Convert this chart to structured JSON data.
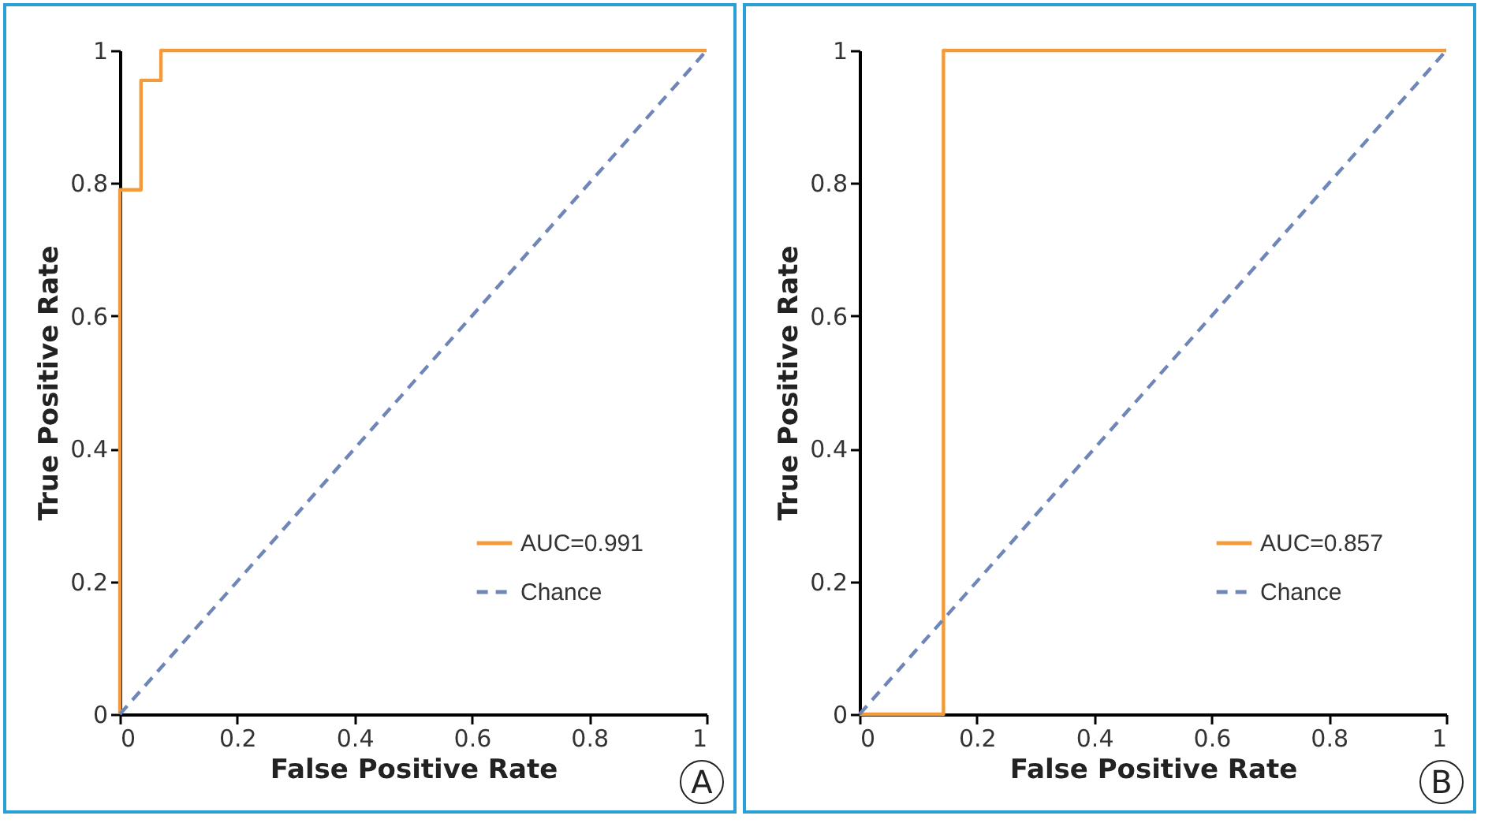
{
  "chart_data": [
    {
      "type": "line",
      "xlabel": "False Positive Rate",
      "ylabel": "True Positive Rate",
      "xlim": [
        0,
        1
      ],
      "ylim": [
        0,
        1
      ],
      "xticks": [
        0,
        0.2,
        0.4,
        0.6,
        0.8,
        1
      ],
      "yticks": [
        0,
        0.2,
        0.4,
        0.6,
        0.8,
        1
      ],
      "legend": "bottom right",
      "annotations": [
        "A"
      ],
      "series": [
        {
          "name": "AUC=0.991",
          "color": "#f39a3a",
          "line_style": "solid",
          "x": [
            0,
            0,
            0.036,
            0.036,
            0.07,
            0.07,
            1
          ],
          "values": [
            0,
            0.79,
            0.79,
            0.955,
            0.955,
            1,
            1
          ]
        },
        {
          "name": "Chance",
          "color": "#6f87b8",
          "line_style": "dashed",
          "x": [
            0,
            1
          ],
          "values": [
            0,
            1
          ]
        }
      ]
    },
    {
      "type": "line",
      "xlabel": "False Positive Rate",
      "ylabel": "True Positive Rate",
      "xlim": [
        0,
        1
      ],
      "ylim": [
        0,
        1
      ],
      "xticks": [
        0,
        0.2,
        0.4,
        0.6,
        0.8,
        1
      ],
      "yticks": [
        0,
        0.2,
        0.4,
        0.6,
        0.8,
        1
      ],
      "legend": "bottom right",
      "annotations": [
        "B"
      ],
      "series": [
        {
          "name": "AUC=0.857",
          "color": "#f39a3a",
          "line_style": "solid",
          "x": [
            0,
            0.07,
            0.143,
            0.143,
            0.5,
            1
          ],
          "values": [
            0,
            0,
            0,
            1,
            1,
            1
          ]
        },
        {
          "name": "Chance",
          "color": "#6f87b8",
          "line_style": "dashed",
          "x": [
            0,
            1
          ],
          "values": [
            0,
            1
          ]
        }
      ]
    }
  ]
}
